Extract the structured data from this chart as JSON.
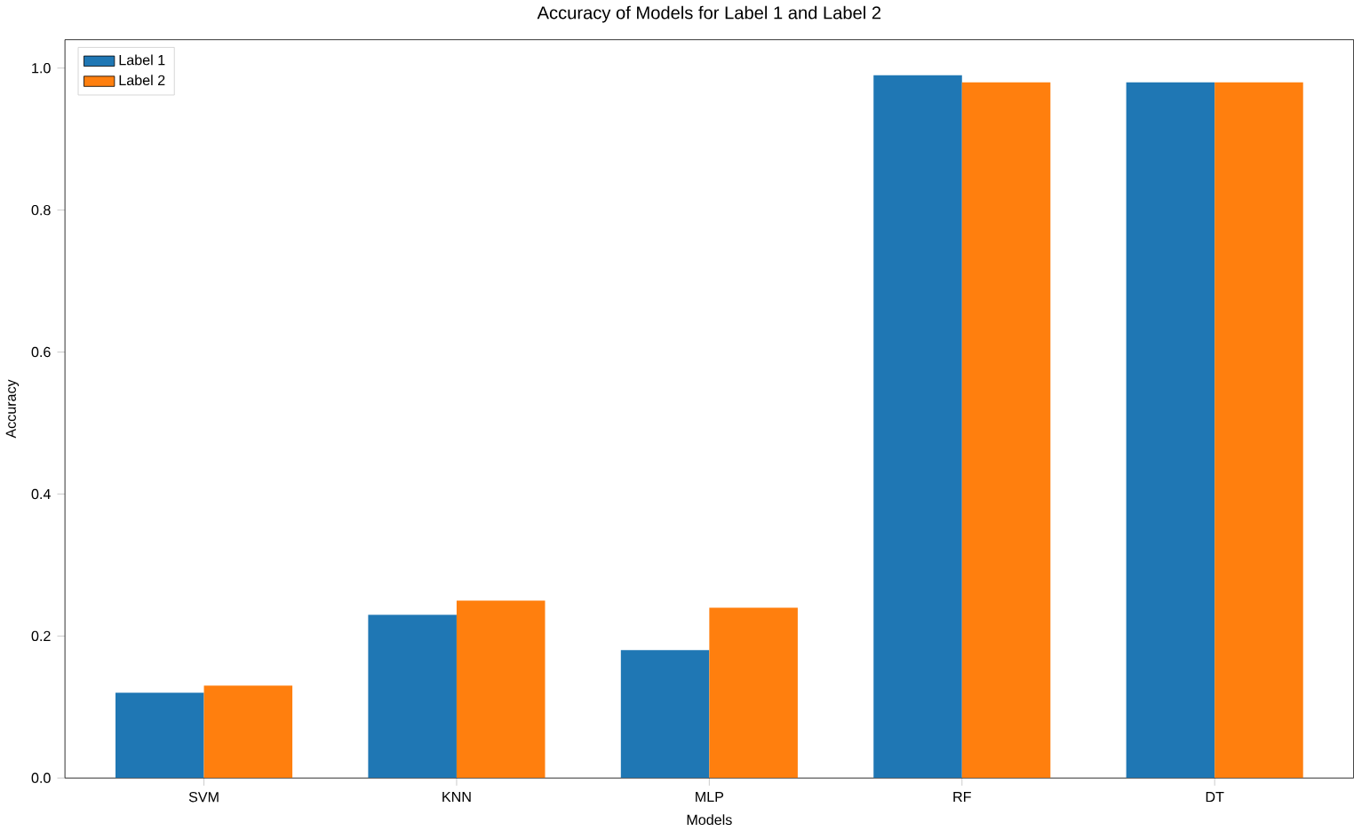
{
  "chart_data": {
    "type": "bar",
    "title": "Accuracy of Models for Label 1 and Label 2",
    "xlabel": "Models",
    "ylabel": "Accuracy",
    "categories": [
      "SVM",
      "KNN",
      "MLP",
      "RF",
      "DT"
    ],
    "series": [
      {
        "name": "Label 1",
        "color": "#1f77b4",
        "values": [
          0.12,
          0.23,
          0.18,
          0.99,
          0.98
        ]
      },
      {
        "name": "Label 2",
        "color": "#ff7f0e",
        "values": [
          0.13,
          0.25,
          0.24,
          0.98,
          0.98
        ]
      }
    ],
    "ylim": [
      0,
      1.04
    ],
    "yticks": [
      {
        "value": 0,
        "label": "0.0"
      },
      0.2,
      0.4,
      0.6,
      0.8,
      {
        "value": 1,
        "label": "1.0"
      }
    ],
    "legend": "top left",
    "grid": false
  }
}
